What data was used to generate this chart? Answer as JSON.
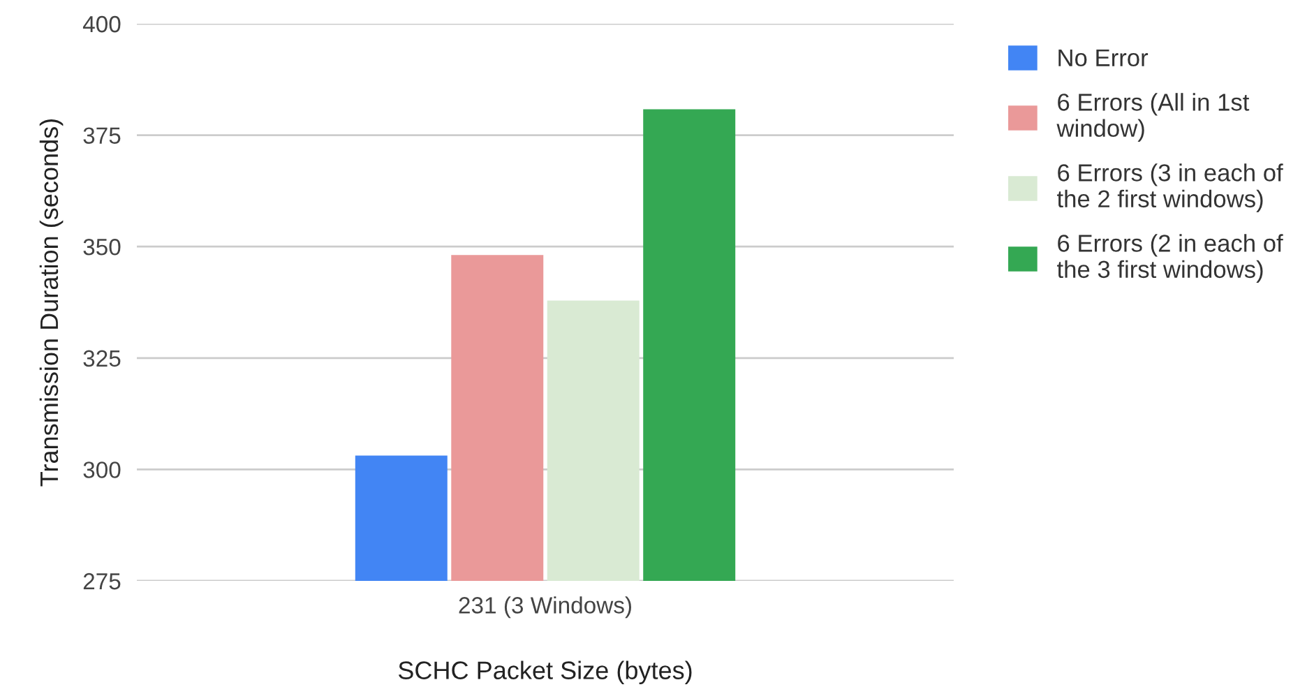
{
  "chart_data": {
    "type": "bar",
    "categories": [
      "231 (3 Windows)"
    ],
    "xlabel": "SCHC Packet Size (bytes)",
    "ylabel": "Transmission Duration (seconds)",
    "series": [
      {
        "name": "No Error",
        "color": "#4285f4",
        "values": [
          303.1
        ]
      },
      {
        "name": "6 Errors (All in 1st\nwindow)",
        "color": "#ea9999",
        "values": [
          348.1
        ]
      },
      {
        "name": "6 Errors (3 in each of\nthe 2 first windows)",
        "color": "#d9ead3",
        "values": [
          337.9
        ]
      },
      {
        "name": "6 Errors (2 in each of\nthe 3 first windows)",
        "color": "#34a853",
        "values": [
          380.8
        ]
      }
    ],
    "ylim": [
      275,
      400
    ],
    "yticks": [
      275,
      300,
      325,
      350,
      375,
      400
    ],
    "grid": "y",
    "legend": "right"
  }
}
